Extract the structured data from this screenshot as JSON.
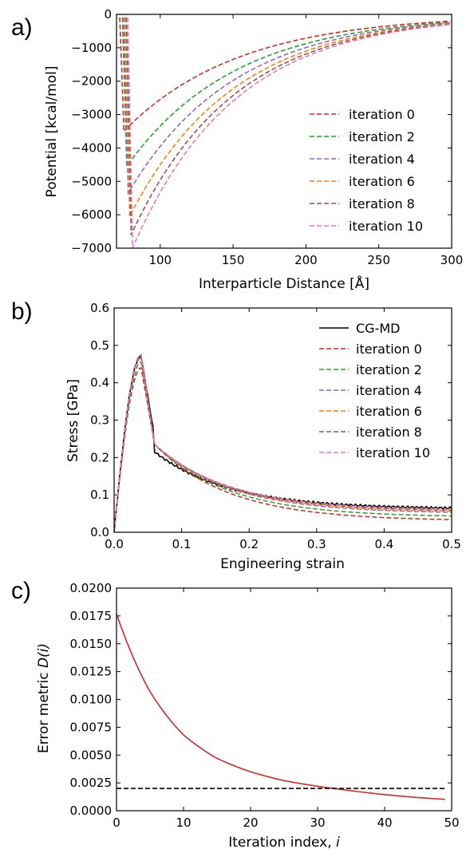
{
  "panels": [
    "a)",
    "b)",
    "c)"
  ],
  "chart_data": [
    {
      "type": "line",
      "panel": "a)",
      "xlabel": "Interparticle Distance [Å]",
      "ylabel": "Potential [kcal/mol]",
      "xlim": [
        70,
        300
      ],
      "ylim": [
        -7000,
        0
      ],
      "xticks": [
        100,
        150,
        200,
        250,
        300
      ],
      "yticks": [
        0,
        -1000,
        -2000,
        -3000,
        -4000,
        -5000,
        -6000,
        -7000
      ],
      "ytick_labels": [
        "0",
        "−1000",
        "−2000",
        "−3000",
        "−4000",
        "−5000",
        "−6000",
        "−7000"
      ],
      "legend_position": "lower-right",
      "series": [
        {
          "name": "iteration 0",
          "color": "#d62728",
          "min_x": 75,
          "min_y": -3500,
          "dash": true
        },
        {
          "name": "iteration 2",
          "color": "#2ca02c",
          "min_x": 77,
          "min_y": -4550,
          "dash": true
        },
        {
          "name": "iteration 4",
          "color": "#9467bd",
          "min_x": 78,
          "min_y": -5350,
          "dash": true
        },
        {
          "name": "iteration 6",
          "color": "#ff7f0e",
          "min_x": 79,
          "min_y": -6050,
          "dash": true
        },
        {
          "name": "iteration 8",
          "color": "#8c564b",
          "min_x": 80,
          "min_y": -6600,
          "dash": true
        },
        {
          "name": "iteration 10",
          "color": "#e377c2",
          "min_x": 81,
          "min_y": -7000,
          "dash": true
        }
      ]
    },
    {
      "type": "line",
      "panel": "b)",
      "xlabel": "Engineering strain",
      "ylabel": "Stress [GPa]",
      "xlim": [
        0,
        0.5
      ],
      "ylim": [
        0,
        0.6
      ],
      "xticks": [
        0.0,
        0.1,
        0.2,
        0.3,
        0.4,
        0.5
      ],
      "xtick_labels": [
        "0.0",
        "0.1",
        "0.2",
        "0.3",
        "0.4",
        "0.5"
      ],
      "yticks": [
        0.0,
        0.1,
        0.2,
        0.3,
        0.4,
        0.5,
        0.6
      ],
      "ytick_labels": [
        "0.0",
        "0.1",
        "0.2",
        "0.3",
        "0.4",
        "0.5",
        "0.6"
      ],
      "legend_position": "upper-right",
      "series": [
        {
          "name": "CG-MD",
          "color": "#000000",
          "dash": false,
          "peak": 0.47,
          "end": 0.062
        },
        {
          "name": "iteration 0",
          "color": "#d62728",
          "dash": true,
          "peak": 0.44,
          "end": 0.03
        },
        {
          "name": "iteration 2",
          "color": "#2ca02c",
          "dash": true,
          "peak": 0.455,
          "end": 0.04
        },
        {
          "name": "iteration 4",
          "color": "#9467bd",
          "dash": true,
          "peak": 0.475,
          "end": 0.05
        },
        {
          "name": "iteration 6",
          "color": "#ff7f0e",
          "dash": true,
          "peak": 0.47,
          "end": 0.053
        },
        {
          "name": "iteration 8",
          "color": "#8c564b",
          "dash": true,
          "peak": 0.468,
          "end": 0.056
        },
        {
          "name": "iteration 10",
          "color": "#e377c2",
          "dash": true,
          "peak": 0.466,
          "end": 0.058
        }
      ]
    },
    {
      "type": "line",
      "panel": "c)",
      "xlabel": "Iteration index, i",
      "xlabel_plain": "Iteration index, ",
      "xlabel_italic": "i",
      "ylabel_plain": "Error metric ",
      "ylabel_italic": "D(i)",
      "xlim": [
        0,
        50
      ],
      "ylim": [
        0,
        0.02
      ],
      "xticks": [
        0,
        10,
        20,
        30,
        40,
        50
      ],
      "yticks": [
        0.0,
        0.0025,
        0.005,
        0.0075,
        0.01,
        0.0125,
        0.015,
        0.0175,
        0.02
      ],
      "ytick_labels": [
        "0.0000",
        "0.0025",
        "0.0050",
        "0.0075",
        "0.0100",
        "0.0125",
        "0.0150",
        "0.0175",
        "0.0200"
      ],
      "series": [
        {
          "color": "#d62728",
          "dash": false,
          "x": [
            0,
            5,
            10,
            15,
            20,
            25,
            30,
            35,
            40,
            45,
            49
          ],
          "y": [
            0.0177,
            0.0107,
            0.0068,
            0.0047,
            0.0035,
            0.0027,
            0.0022,
            0.0018,
            0.00145,
            0.00118,
            0.00102
          ]
        },
        {
          "color": "#000000",
          "dash": true,
          "x": [
            0,
            49
          ],
          "y": [
            0.002,
            0.002
          ]
        }
      ]
    }
  ]
}
